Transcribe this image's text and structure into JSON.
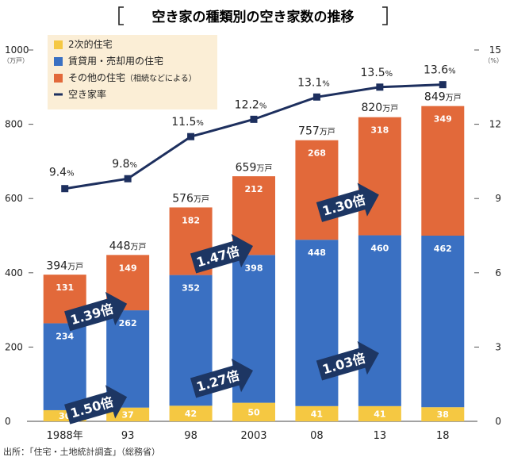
{
  "chart_data": {
    "type": "bar",
    "title": "空き家の種類別の空き家数の推移",
    "categories": [
      "1988年",
      "93",
      "98",
      "2003",
      "08",
      "13",
      "18"
    ],
    "series": [
      {
        "name": "2次的住宅",
        "color": "#f5c842",
        "values": [
          30,
          37,
          42,
          50,
          41,
          41,
          38
        ]
      },
      {
        "name": "賃貸用・売却用の住宅",
        "color": "#3a70c2",
        "values": [
          234,
          262,
          352,
          398,
          448,
          460,
          462
        ]
      },
      {
        "name": "その他の住宅",
        "name_note": "（相続などによる）",
        "color": "#e2693a",
        "values": [
          131,
          149,
          182,
          212,
          268,
          318,
          349
        ]
      }
    ],
    "totals": [
      394,
      448,
      576,
      659,
      757,
      820,
      849
    ],
    "total_unit": "万戸",
    "rate": {
      "name": "空き家率",
      "color": "#1d2f5e",
      "values": [
        9.4,
        9.8,
        11.5,
        12.2,
        13.1,
        13.5,
        13.6
      ],
      "suffix": "%"
    },
    "y_left": {
      "unit": "（万戸）",
      "ticks": [
        0,
        200,
        400,
        600,
        800,
        1000
      ],
      "ylim": [
        0,
        1000
      ]
    },
    "y_right": {
      "unit": "（%）",
      "ticks": [
        0,
        3,
        6,
        9,
        12,
        15
      ],
      "ylim": [
        0,
        15
      ]
    },
    "arrows": [
      {
        "label": "1.50倍",
        "from": 0,
        "to": 2,
        "series": 1
      },
      {
        "label": "1.39倍",
        "from": 0,
        "to": 1,
        "series": 2
      },
      {
        "label": "1.27倍",
        "from": 2,
        "to": 4,
        "series": 1
      },
      {
        "label": "1.47倍",
        "from": 2,
        "to": 3,
        "series": 2
      },
      {
        "label": "1.03倍",
        "from": 4,
        "to": 6,
        "series": 1
      },
      {
        "label": "1.30倍",
        "from": 4,
        "to": 5,
        "series": 2
      }
    ],
    "legend_position": "top-left",
    "grid": false
  },
  "source": "出所：「住宅・土地統計調査」（総務省）",
  "colors": {
    "legend_bg": "#fbeed6",
    "arrow": "#1d3663",
    "axis": "#333333"
  }
}
